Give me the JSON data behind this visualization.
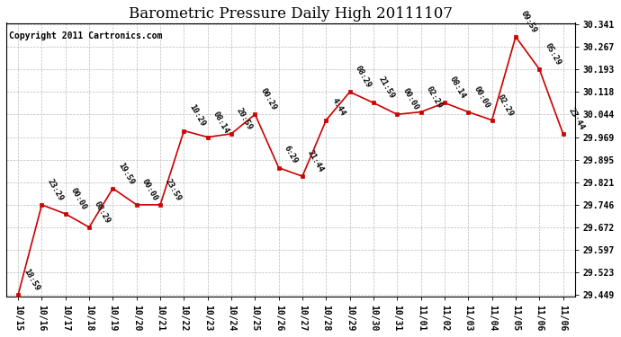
{
  "title": "Barometric Pressure Daily High 20111107",
  "copyright": "Copyright 2011 Cartronics.com",
  "points": [
    {
      "x": 0,
      "date": "10/15",
      "time": "18:59",
      "value": 29.449
    },
    {
      "x": 1,
      "date": "10/16",
      "time": "23:29",
      "value": 29.746
    },
    {
      "x": 2,
      "date": "10/17",
      "time": "00:00",
      "value": 29.716
    },
    {
      "x": 3,
      "date": "10/18",
      "time": "08:29",
      "value": 29.672
    },
    {
      "x": 4,
      "date": "10/19",
      "time": "19:59",
      "value": 29.8
    },
    {
      "x": 5,
      "date": "10/20",
      "time": "00:00",
      "value": 29.746
    },
    {
      "x": 6,
      "date": "10/21",
      "time": "23:59",
      "value": 29.746
    },
    {
      "x": 7,
      "date": "10/22",
      "time": "10:29",
      "value": 29.99
    },
    {
      "x": 8,
      "date": "10/23",
      "time": "08:14",
      "value": 29.969
    },
    {
      "x": 9,
      "date": "10/24",
      "time": "20:59",
      "value": 29.98
    },
    {
      "x": 10,
      "date": "10/25",
      "time": "00:29",
      "value": 30.044
    },
    {
      "x": 11,
      "date": "10/26",
      "time": "6:29",
      "value": 29.868
    },
    {
      "x": 12,
      "date": "10/27",
      "time": "21:44",
      "value": 29.84
    },
    {
      "x": 13,
      "date": "10/28",
      "time": "4:44",
      "value": 30.025
    },
    {
      "x": 14,
      "date": "10/29",
      "time": "08:29",
      "value": 30.118
    },
    {
      "x": 15,
      "date": "10/30",
      "time": "21:59",
      "value": 30.082
    },
    {
      "x": 16,
      "date": "10/31",
      "time": "00:00",
      "value": 30.044
    },
    {
      "x": 17,
      "date": "11/01",
      "time": "02:29",
      "value": 30.052
    },
    {
      "x": 18,
      "date": "11/02",
      "time": "08:14",
      "value": 30.082
    },
    {
      "x": 19,
      "date": "11/03",
      "time": "00:00",
      "value": 30.052
    },
    {
      "x": 20,
      "date": "11/04",
      "time": "02:29",
      "value": 30.025
    },
    {
      "x": 21,
      "date": "11/05",
      "time": "09:59",
      "value": 30.3
    },
    {
      "x": 22,
      "date": "11/06",
      "time": "05:29",
      "value": 30.193
    },
    {
      "x": 23,
      "date": "11/06",
      "time": "23:44",
      "value": 29.98
    }
  ],
  "x_tick_labels": [
    "10/15",
    "10/16",
    "10/17",
    "10/18",
    "10/19",
    "10/20",
    "10/21",
    "10/22",
    "10/23",
    "10/24",
    "10/25",
    "10/26",
    "10/27",
    "10/28",
    "10/29",
    "10/30",
    "10/31",
    "11/01",
    "11/02",
    "11/03",
    "11/04",
    "11/05",
    "11/06",
    "11/06"
  ],
  "y_ticks": [
    29.449,
    29.523,
    29.597,
    29.672,
    29.746,
    29.821,
    29.895,
    29.969,
    30.044,
    30.118,
    30.193,
    30.267,
    30.341
  ],
  "ylim_min": 29.449,
  "ylim_max": 30.341,
  "line_color": "#cc0000",
  "marker_color": "#cc0000",
  "bg_color": "#ffffff",
  "grid_color": "#bbbbbb",
  "title_fontsize": 12,
  "copyright_fontsize": 7,
  "annotation_fontsize": 6.5,
  "tick_fontsize": 7
}
